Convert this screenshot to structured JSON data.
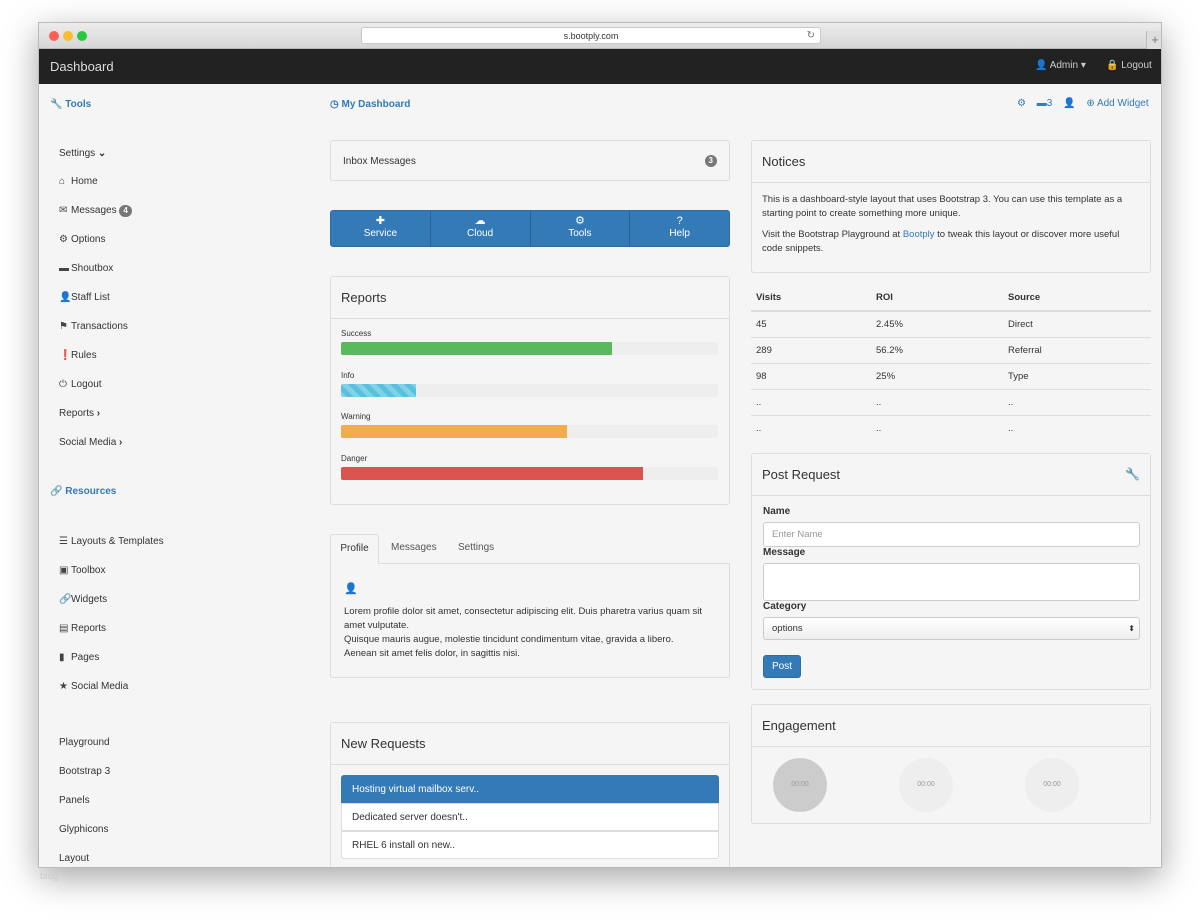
{
  "browser": {
    "url": "s.bootply.com",
    "new_tab_label": "+"
  },
  "navbar": {
    "brand": "Dashboard",
    "user_label": "Admin",
    "logout_label": "Logout"
  },
  "sidebar": {
    "tools_label": "Tools",
    "tool_items": [
      {
        "label": "Settings",
        "icon": "chevron-down-icon"
      },
      {
        "label": "Home",
        "icon": "home-icon"
      },
      {
        "label": "Messages",
        "icon": "envelope-icon",
        "badge": "4"
      },
      {
        "label": "Options",
        "icon": "cog-icon"
      },
      {
        "label": "Shoutbox",
        "icon": "comment-icon"
      },
      {
        "label": "Staff List",
        "icon": "user-icon"
      },
      {
        "label": "Transactions",
        "icon": "flag-icon"
      },
      {
        "label": "Rules",
        "icon": "exclamation-icon"
      },
      {
        "label": "Logout",
        "icon": "power-icon"
      },
      {
        "label": "Reports",
        "icon": "chevron-right-icon"
      },
      {
        "label": "Social Media",
        "icon": "chevron-right-icon"
      }
    ],
    "resources_label": "Resources",
    "resource_items": [
      {
        "label": "Layouts & Templates",
        "icon": "list-icon"
      },
      {
        "label": "Toolbox",
        "icon": "briefcase-icon"
      },
      {
        "label": "Widgets",
        "icon": "link-icon"
      },
      {
        "label": "Reports",
        "icon": "list-alt-icon"
      },
      {
        "label": "Pages",
        "icon": "book-icon"
      },
      {
        "label": "Social Media",
        "icon": "star-icon"
      }
    ],
    "extra_items": [
      "Playground",
      "Bootstrap 3",
      "Panels",
      "Glyphicons",
      "Layout"
    ]
  },
  "main": {
    "title": "My Dashboard",
    "toolbar": {
      "comment_count": "3",
      "add_widget_label": "Add Widget"
    },
    "inbox": {
      "label": "Inbox Messages",
      "count": "3"
    },
    "buttons": [
      "Service",
      "Cloud",
      "Tools",
      "Help"
    ],
    "reports": {
      "title": "Reports",
      "bars": [
        {
          "label": "Success",
          "percent": 72,
          "color": "#5cb85c"
        },
        {
          "label": "Info",
          "percent": 20,
          "color": "#5bc0de"
        },
        {
          "label": "Warning",
          "percent": 60,
          "color": "#f0ad4e"
        },
        {
          "label": "Danger",
          "percent": 80,
          "color": "#d9534f"
        }
      ]
    },
    "tabs": {
      "items": [
        "Profile",
        "Messages",
        "Settings"
      ],
      "active": "Profile",
      "content_line1": "Lorem profile dolor sit amet, consectetur adipiscing elit. Duis pharetra varius quam sit amet vulputate.",
      "content_line2": "Quisque mauris augue, molestie tincidunt condimentum vitae, gravida a libero.",
      "content_line3": "Aenean sit amet felis dolor, in sagittis nisi."
    },
    "new_requests": {
      "title": "New Requests",
      "items": [
        "Hosting virtual mailbox serv..",
        "Dedicated server doesn't..",
        "RHEL 6 install on new.."
      ]
    }
  },
  "notices": {
    "title": "Notices",
    "paragraph1": "This is a dashboard-style layout that uses Bootstrap 3. You can use this template as a starting point to create something more unique.",
    "paragraph2_before": "Visit the Bootstrap Playground at ",
    "paragraph2_link": "Bootply",
    "paragraph2_after": " to tweak this layout or discover more useful code snippets."
  },
  "stats_table": {
    "headers": [
      "Visits",
      "ROI",
      "Source"
    ],
    "rows": [
      [
        "45",
        "2.45%",
        "Direct"
      ],
      [
        "289",
        "56.2%",
        "Referral"
      ],
      [
        "98",
        "25%",
        "Type"
      ],
      [
        "..",
        "..",
        ".."
      ],
      [
        "..",
        "..",
        ".."
      ]
    ]
  },
  "post_request": {
    "title": "Post Request",
    "name_label": "Name",
    "name_placeholder": "Enter Name",
    "message_label": "Message",
    "category_label": "Category",
    "category_value": "options",
    "submit_label": "Post"
  },
  "engagement": {
    "title": "Engagement",
    "circles": [
      "00:00",
      "00:00",
      "00:00"
    ]
  },
  "footer_watermark": "blog",
  "colors": {
    "primary": "#337ab7",
    "navbar": "#222222"
  }
}
